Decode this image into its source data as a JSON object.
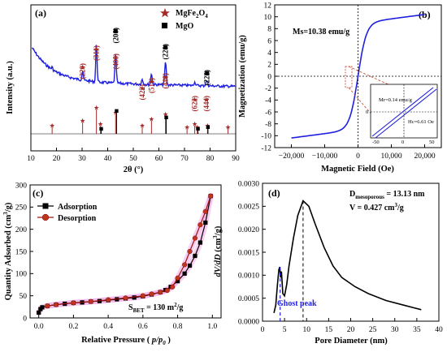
{
  "chart_data": [
    {
      "panel": "(a)",
      "type": "line",
      "xlabel": "2θ (°)",
      "ylabel": "Intensity (a.u.)",
      "xlim": [
        10,
        90
      ],
      "xticks": [
        "10",
        "20",
        "30",
        "40",
        "50",
        "60",
        "70",
        "80",
        "90"
      ],
      "legend": [
        {
          "name": "MgFe2O4",
          "label_main": "MgFe",
          "sub1": "2",
          "mid": "O",
          "sub2": "4",
          "color": "#a52a2a",
          "marker": "star"
        },
        {
          "name": "MgO",
          "label_main": "MgO",
          "color": "#000000",
          "marker": "square"
        }
      ],
      "line_color": "#1f1fe0",
      "peak_labels": [
        {
          "text": "(220)",
          "x": 30.2,
          "color": "#a52a2a",
          "rot": true
        },
        {
          "text": "(311)",
          "x": 35.6,
          "color": "#a52a2a",
          "rot": true
        },
        {
          "text": "(400)",
          "x": 43.1,
          "color": "#a52a2a",
          "rot": true
        },
        {
          "text": "(200)",
          "x": 43.1,
          "color": "#000000",
          "rot": true
        },
        {
          "text": "(422)",
          "x": 53.5,
          "color": "#a52a2a",
          "rot": true
        },
        {
          "text": "(511)",
          "x": 57.1,
          "color": "#a52a2a",
          "rot": true
        },
        {
          "text": "(440)",
          "x": 62.6,
          "color": "#a52a2a",
          "rot": true
        },
        {
          "text": "(220)",
          "x": 62.6,
          "color": "#000000",
          "rot": true
        },
        {
          "text": "(622)",
          "x": 74.0,
          "color": "#a52a2a",
          "rot": true
        },
        {
          "text": "(444)",
          "x": 78.5,
          "color": "#a52a2a",
          "rot": true
        },
        {
          "text": "(222)",
          "x": 78.8,
          "color": "#000000",
          "rot": true
        }
      ],
      "reference_spinel": [
        18.3,
        30.2,
        35.6,
        37.2,
        43.1,
        53.5,
        57.1,
        62.6,
        71.0,
        74.0,
        75.0,
        79.0,
        87.0
      ],
      "reference_mgo": [
        37.0,
        43.0,
        62.4,
        74.8,
        78.7
      ]
    },
    {
      "panel": "(b)",
      "type": "line",
      "xlabel": "Magnetic Field (Oe)",
      "ylabel": "Magnetization (emu/g)",
      "xlim": [
        -25000,
        25000
      ],
      "ylim": [
        -12,
        12
      ],
      "xticks": [
        "−20,000",
        "−10,000",
        "0",
        "10,000",
        "20,000"
      ],
      "yticks": [
        "-12",
        "-10",
        "-8",
        "-6",
        "-4",
        "-2",
        "0",
        "2",
        "4",
        "6",
        "8",
        "10",
        "12"
      ],
      "annotation": "Ms=10.38 emu/g",
      "ms": 10.38,
      "inset": {
        "xticks": [
          "-50",
          "0",
          "50"
        ],
        "yticks": [
          "0"
        ],
        "mr_label": "Mr=0.14 emu/g",
        "hc_label": "Hc=6.61 Oe"
      },
      "line_color": "#1f1fe0"
    },
    {
      "panel": "(c)",
      "type": "line",
      "xlabel": "Relative Pressure",
      "xlabel_paren": "( p/p0 )",
      "ylabel": "Quantity Adsorbed (cm3/g)",
      "xlim": [
        -0.05,
        1.05
      ],
      "ylim": [
        0,
        300
      ],
      "xticks": [
        "0.0",
        "0.2",
        "0.4",
        "0.6",
        "0.8",
        "1.0"
      ],
      "yticks": [
        "0",
        "50",
        "100",
        "150",
        "200",
        "250",
        "300"
      ],
      "annotation": "SBET = 130 m2/g",
      "series": [
        {
          "name": "Adsorption",
          "color": "#000000",
          "marker": "square",
          "x": [
            0.0,
            0.01,
            0.02,
            0.05,
            0.1,
            0.15,
            0.2,
            0.25,
            0.3,
            0.35,
            0.4,
            0.45,
            0.5,
            0.55,
            0.6,
            0.65,
            0.7,
            0.73,
            0.76,
            0.8,
            0.84,
            0.87,
            0.9,
            0.93,
            0.96,
            0.99
          ],
          "y": [
            12,
            20,
            24,
            27,
            30,
            32,
            34,
            35,
            37,
            38,
            40,
            42,
            44,
            46,
            49,
            53,
            58,
            63,
            70,
            83,
            100,
            118,
            140,
            170,
            215,
            275
          ]
        },
        {
          "name": "Desorption",
          "color": "#a01010",
          "marker": "circle",
          "x": [
            0.99,
            0.96,
            0.93,
            0.9,
            0.87,
            0.84,
            0.8,
            0.77,
            0.74,
            0.7,
            0.65,
            0.6,
            0.5,
            0.4,
            0.3,
            0.2,
            0.1,
            0.05
          ],
          "y": [
            275,
            240,
            210,
            180,
            150,
            120,
            90,
            70,
            62,
            58,
            54,
            50,
            45,
            41,
            37,
            34,
            30,
            27
          ]
        }
      ]
    },
    {
      "panel": "(d)",
      "type": "line",
      "xlabel": "Pore Diameter (nm)",
      "ylabel": "dV/dD (cm3/g)",
      "xlim": [
        0,
        40
      ],
      "ylim": [
        0,
        0.003
      ],
      "xticks": [
        "0",
        "5",
        "10",
        "15",
        "20",
        "25",
        "30",
        "35",
        "40"
      ],
      "yticks": [
        "0.0000",
        "0.0005",
        "0.0010",
        "0.0015",
        "0.0020",
        "0.0025",
        "0.0030"
      ],
      "annotation1": "Dmesoporous = 13.13 nm",
      "annotation2": "V = 0.427 cm3/g",
      "ghost_label": "Ghost peak",
      "ghost_x": 4.0,
      "peak_x": 9.2,
      "line_color": "#000000",
      "x": [
        2.6,
        3.0,
        3.4,
        3.7,
        3.9,
        4.1,
        4.3,
        4.6,
        5.0,
        5.5,
        6.0,
        7.0,
        8.0,
        9.2,
        10.5,
        12.0,
        14.0,
        16.0,
        18.0,
        21.0,
        24.0,
        28.0,
        32.0,
        36.0
      ],
      "y": [
        0.00018,
        0.00035,
        0.0008,
        0.00112,
        0.00118,
        0.00095,
        0.00108,
        0.0006,
        0.00055,
        0.0008,
        0.0012,
        0.0018,
        0.0023,
        0.00262,
        0.0025,
        0.0021,
        0.0016,
        0.0012,
        0.00095,
        0.00075,
        0.0006,
        0.00045,
        0.00035,
        0.00025
      ]
    }
  ]
}
